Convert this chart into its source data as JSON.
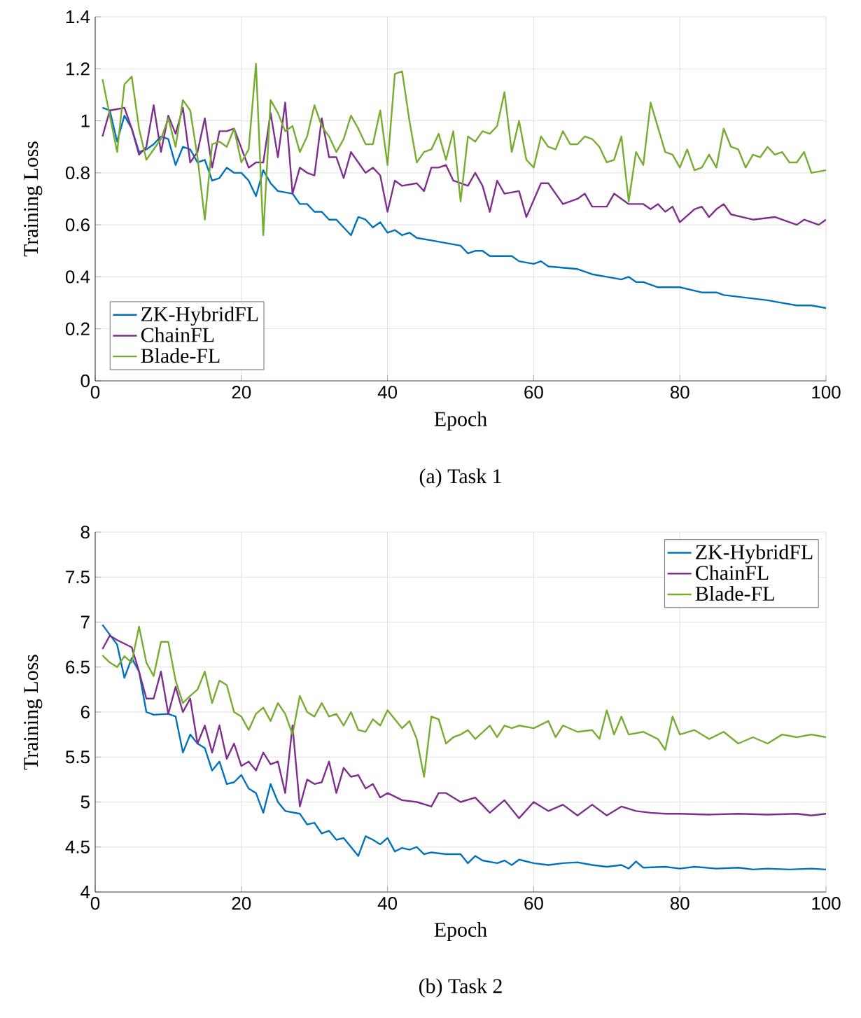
{
  "chart_data": [
    {
      "type": "line",
      "title": "(a) Task 1",
      "xlabel": "Epoch",
      "ylabel": "Training Loss",
      "xlim": [
        0,
        100
      ],
      "ylim": [
        0,
        1.4
      ],
      "xticks": [
        0,
        20,
        40,
        60,
        80,
        100
      ],
      "yticks": [
        0,
        0.2,
        0.4,
        0.6,
        0.8,
        1,
        1.2,
        1.4
      ],
      "grid": true,
      "legend": "bottom left",
      "marker": "none",
      "line_style": "solid",
      "series": [
        {
          "name": "ZK-HybridFL",
          "color": "#0072bd",
          "x": [
            1,
            2,
            3,
            4,
            5,
            6,
            7,
            8,
            9,
            10,
            11,
            12,
            13,
            14,
            15,
            16,
            17,
            18,
            19,
            20,
            21,
            22,
            23,
            24,
            25,
            27,
            28,
            29,
            30,
            31,
            32,
            33,
            35,
            36,
            37,
            38,
            39,
            40,
            41,
            42,
            43,
            44,
            46,
            48,
            50,
            51,
            52,
            53,
            54,
            55,
            57,
            58,
            60,
            61,
            62,
            66,
            68,
            70,
            72,
            73,
            74,
            75,
            77,
            80,
            83,
            85,
            86,
            89,
            92,
            94,
            96,
            98,
            100
          ],
          "values": [
            1.05,
            1.04,
            0.92,
            1.02,
            0.97,
            0.88,
            0.89,
            0.91,
            0.94,
            0.93,
            0.83,
            0.9,
            0.89,
            0.84,
            0.85,
            0.77,
            0.78,
            0.82,
            0.8,
            0.8,
            0.77,
            0.71,
            0.81,
            0.76,
            0.73,
            0.72,
            0.68,
            0.68,
            0.65,
            0.65,
            0.62,
            0.62,
            0.56,
            0.63,
            0.62,
            0.59,
            0.61,
            0.57,
            0.58,
            0.56,
            0.57,
            0.55,
            0.54,
            0.53,
            0.52,
            0.49,
            0.5,
            0.5,
            0.48,
            0.48,
            0.48,
            0.46,
            0.45,
            0.46,
            0.44,
            0.43,
            0.41,
            0.4,
            0.39,
            0.4,
            0.38,
            0.38,
            0.36,
            0.36,
            0.34,
            0.34,
            0.33,
            0.32,
            0.31,
            0.3,
            0.29,
            0.29,
            0.28
          ]
        },
        {
          "name": "ChainFL",
          "color": "#7e2f8e",
          "x": [
            1,
            2,
            4,
            5,
            6,
            7,
            8,
            9,
            10,
            11,
            12,
            13,
            14,
            15,
            16,
            17,
            18,
            19,
            21,
            22,
            23,
            24,
            25,
            26,
            27,
            28,
            29,
            30,
            31,
            32,
            33,
            34,
            35,
            36,
            37,
            38,
            39,
            40,
            41,
            42,
            44,
            45,
            46,
            47,
            48,
            49,
            51,
            52,
            53,
            54,
            55,
            56,
            58,
            59,
            61,
            62,
            64,
            66,
            67,
            68,
            70,
            71,
            73,
            75,
            76,
            77,
            78,
            79,
            80,
            82,
            83,
            84,
            85,
            86,
            87,
            90,
            93,
            96,
            97,
            99,
            100
          ],
          "values": [
            0.94,
            1.04,
            1.05,
            0.97,
            0.87,
            0.9,
            1.06,
            0.88,
            1.02,
            0.95,
            1.05,
            0.84,
            0.88,
            1.01,
            0.82,
            0.96,
            0.96,
            0.97,
            0.82,
            0.84,
            0.84,
            1.03,
            0.86,
            1.07,
            0.72,
            0.82,
            0.8,
            0.79,
            1.01,
            0.86,
            0.86,
            0.78,
            0.88,
            0.84,
            0.8,
            0.82,
            0.79,
            0.65,
            0.77,
            0.75,
            0.76,
            0.73,
            0.82,
            0.82,
            0.83,
            0.77,
            0.75,
            0.8,
            0.75,
            0.65,
            0.77,
            0.72,
            0.73,
            0.63,
            0.76,
            0.76,
            0.68,
            0.7,
            0.72,
            0.67,
            0.67,
            0.72,
            0.68,
            0.68,
            0.66,
            0.68,
            0.65,
            0.67,
            0.61,
            0.66,
            0.67,
            0.63,
            0.66,
            0.68,
            0.64,
            0.62,
            0.63,
            0.6,
            0.62,
            0.6,
            0.62
          ]
        },
        {
          "name": "Blade-FL",
          "color": "#77ac30",
          "x": [
            1,
            3,
            4,
            5,
            6,
            7,
            9,
            10,
            11,
            12,
            13,
            14,
            15,
            16,
            17,
            18,
            19,
            20,
            21,
            22,
            23,
            24,
            25,
            26,
            27,
            28,
            29,
            30,
            31,
            32,
            33,
            34,
            35,
            36,
            37,
            38,
            39,
            40,
            41,
            42,
            43,
            44,
            45,
            46,
            47,
            48,
            49,
            50,
            51,
            52,
            53,
            54,
            55,
            56,
            57,
            58,
            59,
            60,
            61,
            62,
            63,
            64,
            65,
            66,
            67,
            68,
            69,
            70,
            71,
            72,
            73,
            74,
            75,
            76,
            78,
            79,
            80,
            81,
            82,
            83,
            84,
            85,
            86,
            87,
            88,
            89,
            90,
            91,
            92,
            93,
            94,
            95,
            96,
            97,
            98,
            100
          ],
          "values": [
            1.16,
            0.88,
            1.14,
            1.17,
            0.97,
            0.85,
            0.93,
            1.01,
            0.9,
            1.08,
            1.04,
            0.86,
            0.62,
            0.91,
            0.92,
            0.9,
            0.97,
            0.84,
            0.89,
            1.22,
            0.56,
            1.08,
            1.03,
            0.96,
            0.98,
            0.88,
            0.94,
            1.06,
            0.98,
            0.94,
            0.88,
            0.93,
            1.02,
            0.97,
            0.91,
            0.91,
            1.04,
            0.83,
            1.18,
            1.19,
            1.0,
            0.84,
            0.88,
            0.89,
            0.95,
            0.85,
            0.96,
            0.69,
            0.94,
            0.92,
            0.96,
            0.95,
            0.98,
            1.11,
            0.88,
            1.0,
            0.85,
            0.82,
            0.94,
            0.9,
            0.89,
            0.96,
            0.91,
            0.91,
            0.94,
            0.93,
            0.9,
            0.84,
            0.85,
            0.94,
            0.69,
            0.88,
            0.83,
            1.07,
            0.88,
            0.87,
            0.82,
            0.89,
            0.81,
            0.82,
            0.87,
            0.82,
            0.97,
            0.9,
            0.89,
            0.82,
            0.87,
            0.86,
            0.9,
            0.87,
            0.88,
            0.84,
            0.84,
            0.88,
            0.8,
            0.81
          ]
        }
      ]
    },
    {
      "type": "line",
      "title": "(b) Task 2",
      "xlabel": "Epoch",
      "ylabel": "Training Loss",
      "xlim": [
        0,
        100
      ],
      "ylim": [
        4,
        8
      ],
      "xticks": [
        0,
        20,
        40,
        60,
        80,
        100
      ],
      "yticks": [
        4,
        4.5,
        5,
        5.5,
        6,
        6.5,
        7,
        7.5,
        8
      ],
      "grid": true,
      "legend": "top right",
      "marker": "none",
      "line_style": "solid",
      "series": [
        {
          "name": "ZK-HybridFL",
          "color": "#0072bd",
          "x": [
            1,
            3,
            4,
            5,
            6,
            7,
            8,
            10,
            11,
            12,
            13,
            14,
            15,
            16,
            17,
            18,
            19,
            20,
            21,
            22,
            23,
            24,
            25,
            26,
            28,
            29,
            30,
            31,
            32,
            33,
            34,
            35,
            36,
            37,
            38,
            39,
            40,
            41,
            42,
            43,
            44,
            45,
            46,
            48,
            50,
            51,
            52,
            53,
            55,
            56,
            57,
            58,
            60,
            62,
            64,
            66,
            68,
            70,
            72,
            73,
            74,
            75,
            78,
            80,
            82,
            85,
            88,
            90,
            92,
            95,
            98,
            100
          ],
          "values": [
            6.97,
            6.75,
            6.38,
            6.6,
            6.45,
            6.0,
            5.97,
            5.98,
            5.95,
            5.55,
            5.75,
            5.65,
            5.6,
            5.35,
            5.45,
            5.2,
            5.22,
            5.3,
            5.15,
            5.1,
            4.88,
            5.2,
            5.0,
            4.9,
            4.87,
            4.75,
            4.77,
            4.65,
            4.68,
            4.58,
            4.6,
            4.5,
            4.4,
            4.62,
            4.58,
            4.53,
            4.6,
            4.45,
            4.49,
            4.47,
            4.5,
            4.42,
            4.44,
            4.42,
            4.42,
            4.32,
            4.4,
            4.35,
            4.32,
            4.35,
            4.3,
            4.36,
            4.32,
            4.3,
            4.32,
            4.33,
            4.3,
            4.28,
            4.3,
            4.26,
            4.34,
            4.27,
            4.28,
            4.26,
            4.28,
            4.26,
            4.27,
            4.25,
            4.26,
            4.25,
            4.26,
            4.25
          ]
        },
        {
          "name": "ChainFL",
          "color": "#7e2f8e",
          "x": [
            1,
            2,
            3,
            5,
            6,
            7,
            8,
            9,
            10,
            11,
            12,
            13,
            14,
            15,
            16,
            17,
            18,
            19,
            20,
            21,
            22,
            23,
            24,
            25,
            26,
            27,
            28,
            29,
            30,
            31,
            32,
            33,
            34,
            35,
            36,
            37,
            38,
            39,
            40,
            42,
            44,
            46,
            47,
            48,
            50,
            52,
            54,
            56,
            58,
            60,
            62,
            64,
            66,
            68,
            70,
            72,
            74,
            76,
            78,
            80,
            84,
            88,
            92,
            96,
            98,
            100
          ],
          "values": [
            6.7,
            6.85,
            6.8,
            6.72,
            6.45,
            6.15,
            6.15,
            6.45,
            5.98,
            6.28,
            6.0,
            6.15,
            5.65,
            5.85,
            5.55,
            5.85,
            5.48,
            5.65,
            5.4,
            5.45,
            5.35,
            5.55,
            5.42,
            5.45,
            5.1,
            5.85,
            4.95,
            5.25,
            5.2,
            5.22,
            5.45,
            5.1,
            5.38,
            5.28,
            5.3,
            5.15,
            5.2,
            5.05,
            5.1,
            5.02,
            5.0,
            4.95,
            5.1,
            5.1,
            5.0,
            5.05,
            4.88,
            5.02,
            4.82,
            5.0,
            4.9,
            4.97,
            4.85,
            4.97,
            4.85,
            4.95,
            4.9,
            4.88,
            4.87,
            4.87,
            4.86,
            4.87,
            4.86,
            4.87,
            4.85,
            4.87
          ]
        },
        {
          "name": "Blade-FL",
          "color": "#77ac30",
          "x": [
            1,
            2,
            3,
            4,
            5,
            6,
            7,
            8,
            9,
            10,
            11,
            12,
            13,
            14,
            15,
            16,
            17,
            18,
            19,
            20,
            21,
            22,
            23,
            24,
            25,
            26,
            27,
            28,
            29,
            30,
            31,
            32,
            33,
            34,
            35,
            36,
            37,
            38,
            39,
            40,
            41,
            42,
            43,
            44,
            45,
            46,
            47,
            48,
            49,
            50,
            51,
            52,
            54,
            55,
            56,
            57,
            58,
            60,
            62,
            63,
            64,
            66,
            68,
            69,
            70,
            71,
            72,
            73,
            75,
            77,
            78,
            79,
            80,
            82,
            84,
            86,
            88,
            90,
            92,
            94,
            96,
            98,
            100
          ],
          "values": [
            6.63,
            6.55,
            6.5,
            6.62,
            6.55,
            6.95,
            6.55,
            6.4,
            6.78,
            6.78,
            6.35,
            6.1,
            6.18,
            6.25,
            6.45,
            6.1,
            6.35,
            6.3,
            6.0,
            5.95,
            5.8,
            5.98,
            6.05,
            5.9,
            6.1,
            5.98,
            5.75,
            6.18,
            6.0,
            5.95,
            6.1,
            5.95,
            5.98,
            5.85,
            6.0,
            5.8,
            5.78,
            5.92,
            5.85,
            6.02,
            5.92,
            5.82,
            5.9,
            5.7,
            5.28,
            5.95,
            5.92,
            5.65,
            5.72,
            5.75,
            5.8,
            5.7,
            5.85,
            5.72,
            5.85,
            5.82,
            5.85,
            5.82,
            5.9,
            5.72,
            5.85,
            5.78,
            5.8,
            5.7,
            6.02,
            5.75,
            5.95,
            5.75,
            5.78,
            5.7,
            5.58,
            5.95,
            5.75,
            5.8,
            5.7,
            5.78,
            5.65,
            5.72,
            5.65,
            5.75,
            5.72,
            5.75,
            5.72
          ]
        }
      ]
    }
  ]
}
